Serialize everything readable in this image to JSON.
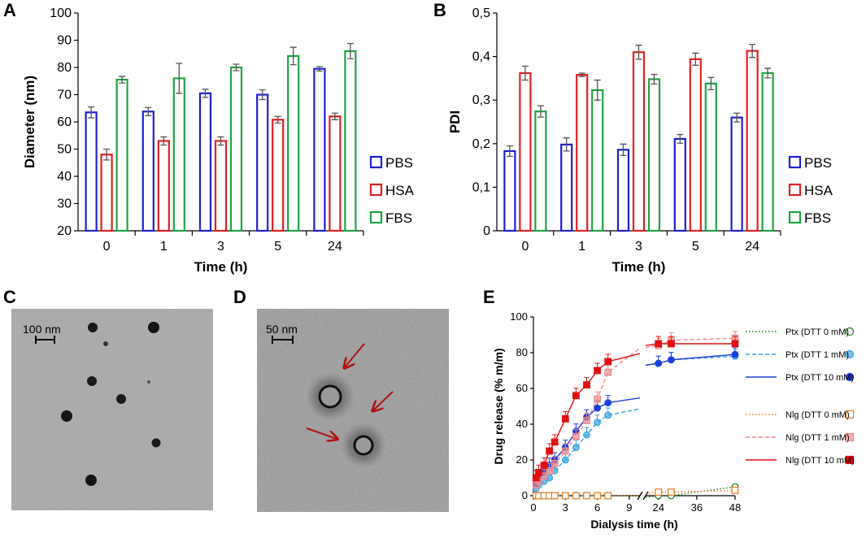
{
  "chart_data": [
    {
      "type": "bar",
      "panel": "A",
      "categories": [
        "0",
        "1",
        "3",
        "5",
        "24"
      ],
      "xlabel": "Time (h)",
      "ylabel": "Diameter (nm)",
      "ylim": [
        20,
        100
      ],
      "yticks": [
        "20",
        "30",
        "40",
        "50",
        "60",
        "70",
        "80",
        "90",
        "100"
      ],
      "series": [
        {
          "name": "PBS",
          "color": "#1f1fd0",
          "values": [
            63.5,
            63.8,
            70.5,
            70.0,
            79.5
          ],
          "errors": [
            2.0,
            1.5,
            1.5,
            1.8,
            0.8
          ]
        },
        {
          "name": "HSA",
          "color": "#e02020",
          "values": [
            48.0,
            53.0,
            53.0,
            60.8,
            62.0
          ],
          "errors": [
            2.0,
            1.5,
            1.5,
            1.2,
            1.2
          ]
        },
        {
          "name": "FBS",
          "color": "#21a343",
          "values": [
            75.5,
            76.0,
            80.0,
            84.2,
            86.0
          ],
          "errors": [
            1.2,
            5.5,
            1.2,
            3.2,
            2.8
          ]
        }
      ]
    },
    {
      "type": "bar",
      "panel": "B",
      "categories": [
        "0",
        "1",
        "3",
        "5",
        "24"
      ],
      "xlabel": "Time (h)",
      "ylabel": "PDI",
      "ylim": [
        0,
        0.5
      ],
      "yticks": [
        "0",
        "0,1",
        "0,2",
        "0,3",
        "0,4",
        "0,5"
      ],
      "series": [
        {
          "name": "PBS",
          "color": "#1f1fd0",
          "values": [
            0.183,
            0.198,
            0.186,
            0.211,
            0.26
          ],
          "errors": [
            0.012,
            0.015,
            0.013,
            0.01,
            0.01
          ]
        },
        {
          "name": "HSA",
          "color": "#e02020",
          "values": [
            0.362,
            0.358,
            0.41,
            0.394,
            0.413
          ],
          "errors": [
            0.016,
            0.004,
            0.016,
            0.014,
            0.015
          ]
        },
        {
          "name": "FBS",
          "color": "#21a343",
          "values": [
            0.274,
            0.323,
            0.348,
            0.338,
            0.362
          ],
          "errors": [
            0.013,
            0.023,
            0.011,
            0.014,
            0.011
          ]
        }
      ]
    },
    {
      "type": "scatter",
      "panel": "E",
      "xlabel": "Dialysis time (h)",
      "ylabel": "Drug release (% m/m)",
      "ylim": [
        0,
        100
      ],
      "yticks": [
        "0",
        "20",
        "40",
        "60",
        "80",
        "100"
      ],
      "xticks_left": [
        "0",
        "3",
        "6",
        "9"
      ],
      "xticks_right": [
        "24",
        "36",
        "48"
      ],
      "x": [
        0.25,
        0.5,
        1,
        1.5,
        2,
        3,
        4,
        5,
        6,
        7,
        24,
        28,
        48
      ],
      "series": [
        {
          "name": "Ptx (DTT 0 mM)",
          "color": "#1a7a1a",
          "marker": "circle-open",
          "line": "dotted",
          "values": [
            0,
            0,
            0,
            0,
            0,
            0,
            0,
            0,
            0,
            0,
            0,
            0,
            5
          ]
        },
        {
          "name": "Ptx (DTT 1 mM)",
          "color": "#33a0e0",
          "marker": "circle-filled-light",
          "line": "dashed",
          "values": [
            4,
            6,
            8,
            10,
            14,
            20,
            27,
            34,
            41,
            45,
            74,
            76,
            78
          ]
        },
        {
          "name": "Ptx (DTT 10 mM)",
          "color": "#1a3fd8",
          "marker": "circle-filled",
          "line": "solid",
          "values": [
            7,
            10,
            13,
            17,
            20,
            27,
            36,
            44,
            49,
            52,
            74,
            76,
            79
          ]
        },
        {
          "name": "Nlg (DTT 0 mM)",
          "color": "#e07a20",
          "marker": "square-open",
          "line": "dotted",
          "values": [
            0,
            0,
            0,
            0,
            0,
            0,
            0,
            0,
            0,
            0,
            2,
            2,
            3
          ]
        },
        {
          "name": "Nlg (DTT 1 mM)",
          "color": "#f08a8a",
          "marker": "square-filled-light",
          "line": "dashed",
          "values": [
            6,
            8,
            11,
            14,
            18,
            25,
            33,
            42,
            54,
            69,
            84,
            87,
            88
          ]
        },
        {
          "name": "Nlg (DTT 10 mM)",
          "color": "#e01010",
          "marker": "square-filled",
          "line": "solid",
          "values": [
            10,
            13,
            17,
            25,
            30,
            43,
            56,
            62,
            70,
            75,
            85,
            85,
            85
          ]
        }
      ]
    }
  ],
  "panels": {
    "a": "A",
    "b": "B",
    "c": "C",
    "d": "D",
    "e": "E"
  },
  "images": {
    "c_scale": "100 nm",
    "d_scale": "50 nm"
  }
}
